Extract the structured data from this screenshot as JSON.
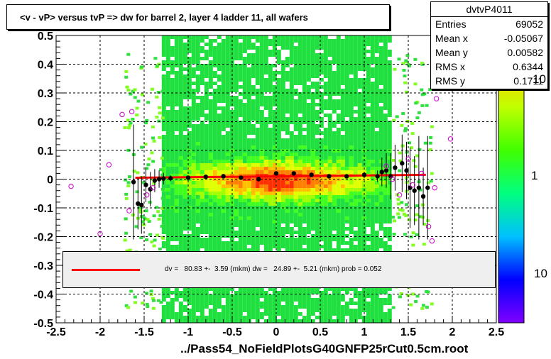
{
  "title": "<v - vP>       versus  tvP =>  dw for barrel 2, layer 4 ladder 11, all wafers",
  "stats": {
    "name": "dvtvP4011",
    "rows": [
      {
        "label": "Entries",
        "value": "69052"
      },
      {
        "label": "Mean x",
        "value": "-0.05067"
      },
      {
        "label": "Mean y",
        "value": "0.00582"
      },
      {
        "label": "RMS x",
        "value": "0.6344"
      },
      {
        "label": "RMS y",
        "value": "0.1711"
      }
    ]
  },
  "legend_text": "dv =   80.83 +-  3.59 (mkm) dw =   24.89 +-  5.21 (mkm) prob = 0.052",
  "x_title": "../Pass54_NoFieldPlotsG40GNFP25rCut0.5cm.root",
  "z_labels": [
    "10",
    "1",
    "10"
  ],
  "colors": {
    "profile": "#000000",
    "open_markers": "#cc00cc",
    "fit": "#ff0000",
    "frame": "#000000"
  },
  "chart_data": {
    "type": "heatmap",
    "xlim": [
      -2.5,
      2.5
    ],
    "ylim": [
      -0.5,
      0.5
    ],
    "x_ticks": [
      "-2.5",
      "-2",
      "-1.5",
      "-1",
      "-0.5",
      "0",
      "0.5",
      "1",
      "1.5",
      "2",
      "2.5"
    ],
    "y_ticks": [
      "-0.5",
      "-0.4",
      "-0.3",
      "-0.2",
      "-0.1",
      "0",
      "0.1",
      "0.2",
      "0.3",
      "0.4",
      "0.5"
    ],
    "grid": true,
    "density_band_x": [
      -1.3,
      1.3
    ],
    "fit_line": {
      "x": [
        -1.6,
        1.7
      ],
      "y": [
        0.005,
        0.015
      ]
    },
    "profile_filled": [
      {
        "x": -1.62,
        "y": -0.01,
        "err": 0.2
      },
      {
        "x": -1.57,
        "y": -0.085,
        "err": 0.09
      },
      {
        "x": -1.53,
        "y": -0.09,
        "err": 0.1
      },
      {
        "x": -1.48,
        "y": -0.02,
        "err": 0.06
      },
      {
        "x": -1.43,
        "y": -0.035,
        "err": 0.06
      },
      {
        "x": -1.38,
        "y": -0.005,
        "err": 0.04
      },
      {
        "x": -1.33,
        "y": 0.0,
        "err": 0.03
      },
      {
        "x": -1.28,
        "y": 0.002,
        "err": 0.02
      },
      {
        "x": -1.2,
        "y": 0.003,
        "err": 0.01
      },
      {
        "x": -1.0,
        "y": 0.005,
        "err": 0.008
      },
      {
        "x": -0.8,
        "y": 0.008,
        "err": 0.006
      },
      {
        "x": -0.6,
        "y": 0.01,
        "err": 0.006
      },
      {
        "x": -0.4,
        "y": 0.005,
        "err": 0.005
      },
      {
        "x": -0.2,
        "y": 0.0,
        "err": 0.005
      },
      {
        "x": 0.0,
        "y": 0.02,
        "err": 0.005
      },
      {
        "x": 0.2,
        "y": 0.02,
        "err": 0.005
      },
      {
        "x": 0.4,
        "y": 0.015,
        "err": 0.005
      },
      {
        "x": 0.6,
        "y": 0.01,
        "err": 0.006
      },
      {
        "x": 0.8,
        "y": 0.01,
        "err": 0.006
      },
      {
        "x": 1.0,
        "y": 0.015,
        "err": 0.008
      },
      {
        "x": 1.15,
        "y": 0.01,
        "err": 0.02
      },
      {
        "x": 1.2,
        "y": 0.025,
        "err": 0.05
      },
      {
        "x": 1.25,
        "y": 0.03,
        "err": 0.06
      },
      {
        "x": 1.3,
        "y": 0.01,
        "err": 0.08
      },
      {
        "x": 1.35,
        "y": 0.04,
        "err": 0.08
      },
      {
        "x": 1.43,
        "y": 0.055,
        "err": 0.1
      },
      {
        "x": 1.48,
        "y": 0.03,
        "err": 0.1
      },
      {
        "x": 1.52,
        "y": -0.03,
        "err": 0.14
      },
      {
        "x": 1.57,
        "y": -0.04,
        "err": 0.12
      },
      {
        "x": 1.62,
        "y": -0.03,
        "err": 0.18
      },
      {
        "x": 1.67,
        "y": -0.06,
        "err": 0.1
      },
      {
        "x": 1.72,
        "y": -0.03,
        "err": 0.18
      }
    ],
    "profile_open": [
      {
        "x": -2.33,
        "y": -0.025
      },
      {
        "x": -2.0,
        "y": -0.19
      },
      {
        "x": -1.9,
        "y": 0.05
      },
      {
        "x": -1.75,
        "y": 0.225
      },
      {
        "x": -1.67,
        "y": -0.11
      },
      {
        "x": -1.64,
        "y": 0.235
      },
      {
        "x": -1.47,
        "y": -0.055
      },
      {
        "x": -1.4,
        "y": -0.03
      },
      {
        "x": 1.25,
        "y": 0.045
      },
      {
        "x": 1.32,
        "y": 0.0
      },
      {
        "x": 1.4,
        "y": -0.055
      },
      {
        "x": 1.5,
        "y": 0.07
      },
      {
        "x": 1.55,
        "y": -0.02
      },
      {
        "x": 1.65,
        "y": 0.02
      },
      {
        "x": 1.73,
        "y": -0.165
      },
      {
        "x": 1.77,
        "y": -0.215
      },
      {
        "x": 1.8,
        "y": -0.03
      },
      {
        "x": 1.82,
        "y": 0.28
      },
      {
        "x": 1.98,
        "y": 0.14
      }
    ]
  }
}
